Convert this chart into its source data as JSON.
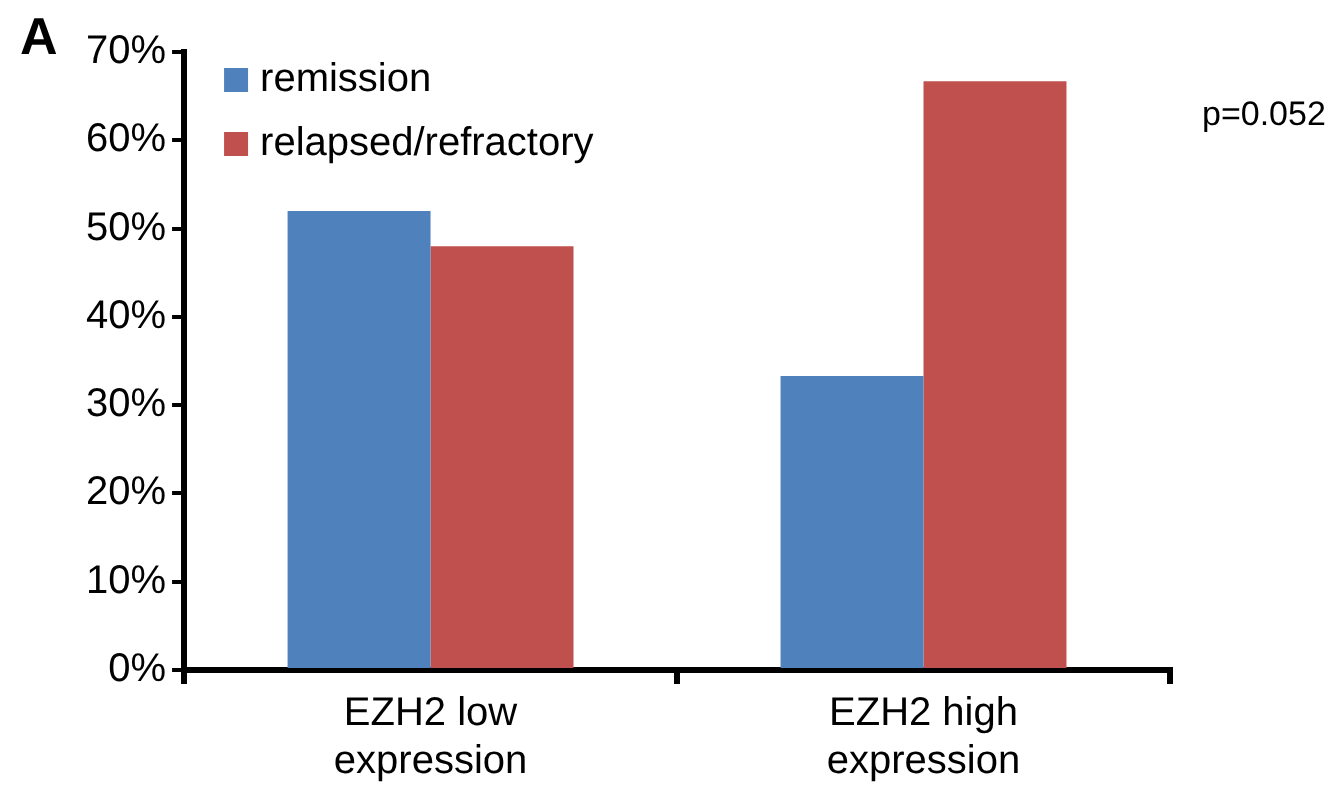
{
  "chart_data": {
    "type": "bar",
    "categories": [
      "EZH2 low expression",
      "EZH2 high expression"
    ],
    "series": [
      {
        "name": "remission",
        "color": "#4f81bd",
        "values": [
          52,
          33.3
        ]
      },
      {
        "name": "relapsed/refractory",
        "color": "#c0504d",
        "values": [
          48,
          66.7
        ]
      }
    ],
    "ylim": [
      0,
      70
    ],
    "yticks": [
      {
        "value": 0,
        "label": "0%"
      },
      {
        "value": 10,
        "label": "10%"
      },
      {
        "value": 20,
        "label": "20%"
      },
      {
        "value": 30,
        "label": "30%"
      },
      {
        "value": 40,
        "label": "40%"
      },
      {
        "value": 50,
        "label": "50%"
      },
      {
        "value": 60,
        "label": "60%"
      },
      {
        "value": 70,
        "label": "70%"
      }
    ],
    "grid": false,
    "legend": "top left",
    "annotations": [
      "A",
      "p=0.052"
    ]
  }
}
